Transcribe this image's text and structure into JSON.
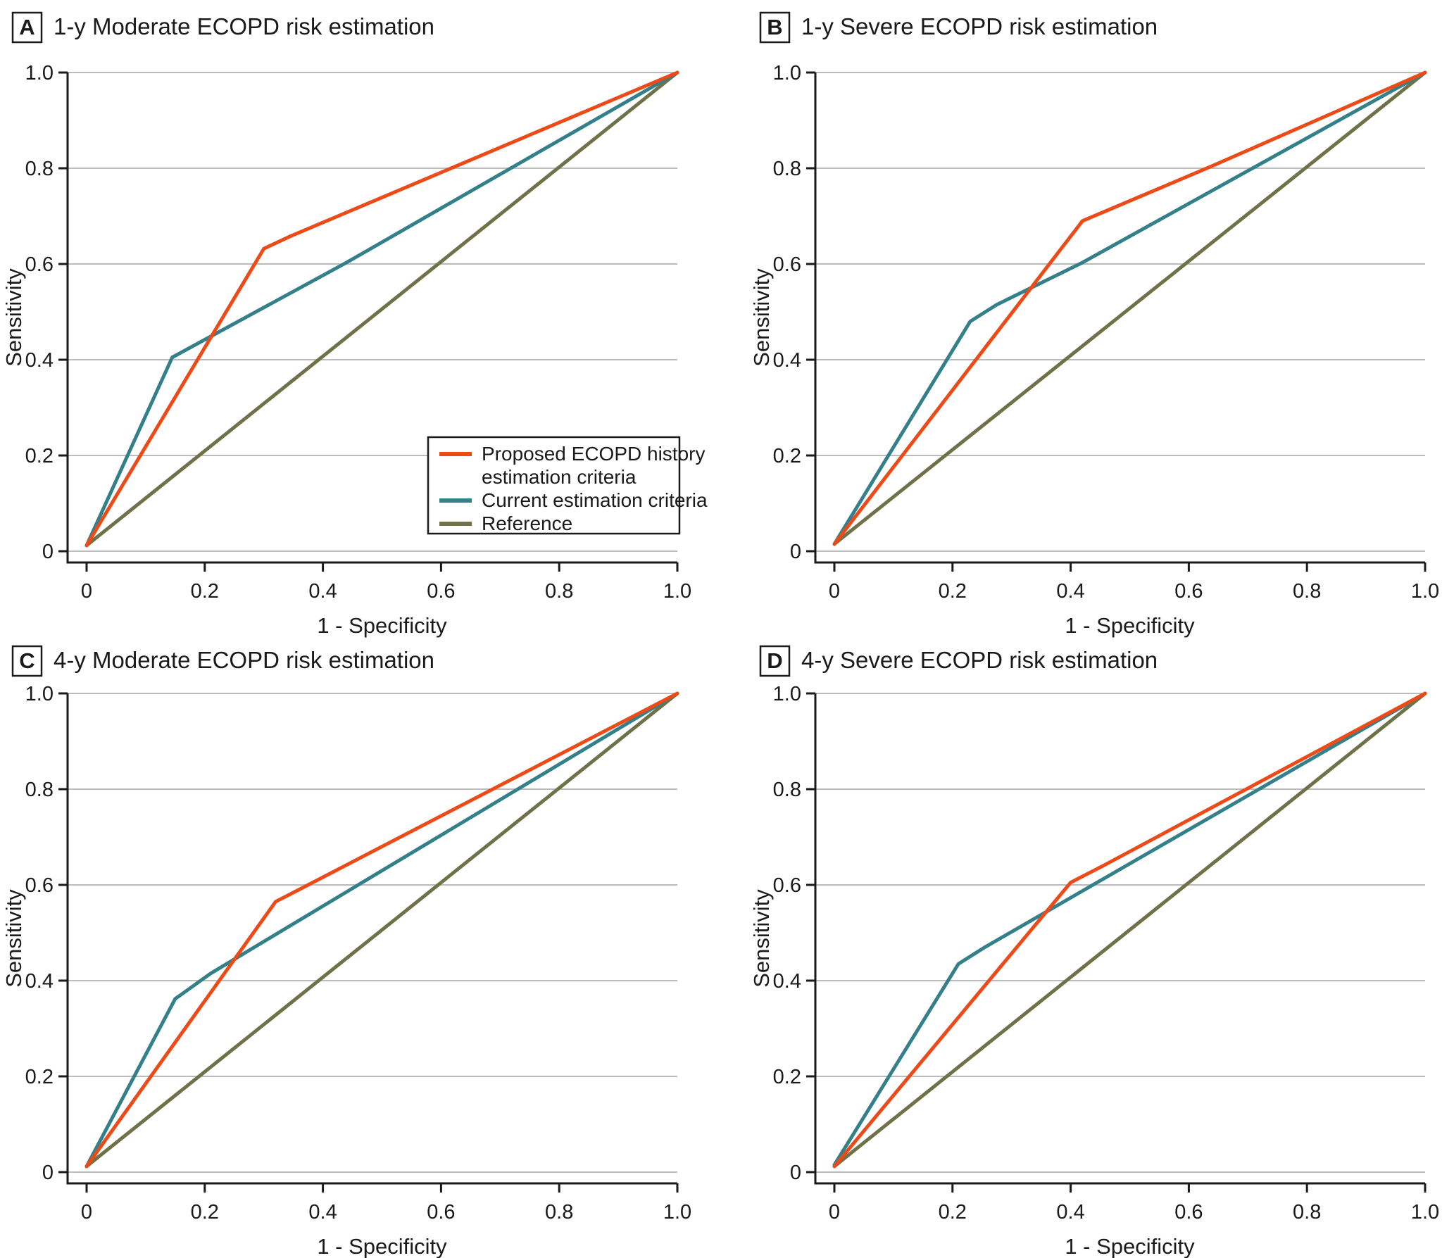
{
  "figure": {
    "background": "#ffffff",
    "colors": {
      "proposed": "#ee4a18",
      "current": "#33808a",
      "reference": "#6f7249",
      "grid": "#bbbbbb",
      "axis": "#1a1a1a",
      "text": "#1a1a1a",
      "legend_border": "#1a1a1a"
    },
    "legend": {
      "located_in_panel": "A",
      "entries": [
        {
          "series": "proposed",
          "label_lines": [
            "Proposed ECOPD history",
            "estimation criteria"
          ]
        },
        {
          "series": "current",
          "label_lines": [
            "Current estimation criteria"
          ]
        },
        {
          "series": "reference",
          "label_lines": [
            "Reference"
          ]
        }
      ]
    }
  },
  "chart_data": [
    {
      "type": "line",
      "panel_label": "A",
      "title": "1-y Moderate ECOPD risk estimation",
      "xlabel": "1 - Specificity",
      "ylabel": "Sensitivity",
      "xlim": [
        0,
        1
      ],
      "ylim": [
        0,
        1
      ],
      "grid": true,
      "xtick_values": [
        0,
        0.2,
        0.4,
        0.6,
        0.8,
        1.0
      ],
      "xtick_labels": [
        "0",
        "0.2",
        "0.4",
        "0.6",
        "0.8",
        "1.0"
      ],
      "ytick_values": [
        0,
        0.2,
        0.4,
        0.6,
        0.8,
        1.0
      ],
      "ytick_labels": [
        "0",
        "0.2",
        "0.4",
        "0.6",
        "0.8",
        "1.0"
      ],
      "show_legend": true,
      "series": [
        {
          "name": "Reference",
          "key": "reference",
          "points": [
            [
              0,
              0.012
            ],
            [
              1,
              1
            ]
          ]
        },
        {
          "name": "Current estimation criteria",
          "key": "current",
          "points": [
            [
              0,
              0.012
            ],
            [
              0.145,
              0.405
            ],
            [
              0.44,
              0.603
            ],
            [
              1,
              1
            ]
          ]
        },
        {
          "name": "Proposed ECOPD history estimation criteria",
          "key": "proposed",
          "points": [
            [
              0,
              0.012
            ],
            [
              0.3,
              0.632
            ],
            [
              0.345,
              0.658
            ],
            [
              1,
              1
            ]
          ]
        }
      ]
    },
    {
      "type": "line",
      "panel_label": "B",
      "title": "1-y Severe ECOPD risk estimation",
      "xlabel": "1 - Specificity",
      "ylabel": "Sensitivity",
      "xlim": [
        0,
        1
      ],
      "ylim": [
        0,
        1
      ],
      "grid": true,
      "xtick_values": [
        0,
        0.2,
        0.4,
        0.6,
        0.8,
        1.0
      ],
      "xtick_labels": [
        "0",
        "0.2",
        "0.4",
        "0.6",
        "0.8",
        "1.0"
      ],
      "ytick_values": [
        0,
        0.2,
        0.4,
        0.6,
        0.8,
        1.0
      ],
      "ytick_labels": [
        "0",
        "0.2",
        "0.4",
        "0.6",
        "0.8",
        "1.0"
      ],
      "show_legend": false,
      "series": [
        {
          "name": "Reference",
          "key": "reference",
          "points": [
            [
              0,
              0.015
            ],
            [
              1,
              1
            ]
          ]
        },
        {
          "name": "Current estimation criteria",
          "key": "current",
          "points": [
            [
              0,
              0.015
            ],
            [
              0.23,
              0.48
            ],
            [
              0.275,
              0.515
            ],
            [
              0.42,
              0.603
            ],
            [
              1,
              1
            ]
          ]
        },
        {
          "name": "Proposed ECOPD history estimation criteria",
          "key": "proposed",
          "points": [
            [
              0,
              0.015
            ],
            [
              0.42,
              0.69
            ],
            [
              0.64,
              0.805
            ],
            [
              1,
              1
            ]
          ]
        }
      ]
    },
    {
      "type": "line",
      "panel_label": "C",
      "title": "4-y Moderate ECOPD risk estimation",
      "xlabel": "1 - Specificity",
      "ylabel": "Sensitivity",
      "xlim": [
        0,
        1
      ],
      "ylim": [
        0,
        1
      ],
      "grid": true,
      "xtick_values": [
        0,
        0.2,
        0.4,
        0.6,
        0.8,
        1.0
      ],
      "xtick_labels": [
        "0",
        "0.2",
        "0.4",
        "0.6",
        "0.8",
        "1.0"
      ],
      "ytick_values": [
        0,
        0.2,
        0.4,
        0.6,
        0.8,
        1.0
      ],
      "ytick_labels": [
        "0",
        "0.2",
        "0.4",
        "0.6",
        "0.8",
        "1.0"
      ],
      "show_legend": false,
      "series": [
        {
          "name": "Reference",
          "key": "reference",
          "points": [
            [
              0,
              0.012
            ],
            [
              1,
              1
            ]
          ]
        },
        {
          "name": "Current estimation criteria",
          "key": "current",
          "points": [
            [
              0,
              0.012
            ],
            [
              0.15,
              0.362
            ],
            [
              0.21,
              0.415
            ],
            [
              1,
              1
            ]
          ]
        },
        {
          "name": "Proposed ECOPD history estimation criteria",
          "key": "proposed",
          "points": [
            [
              0,
              0.012
            ],
            [
              0.32,
              0.565
            ],
            [
              0.375,
              0.6
            ],
            [
              1,
              1
            ]
          ]
        }
      ]
    },
    {
      "type": "line",
      "panel_label": "D",
      "title": "4-y Severe ECOPD risk estimation",
      "xlabel": "1 - Specificity",
      "ylabel": "Sensitivity",
      "xlim": [
        0,
        1
      ],
      "ylim": [
        0,
        1
      ],
      "grid": true,
      "xtick_values": [
        0,
        0.2,
        0.4,
        0.6,
        0.8,
        1.0
      ],
      "xtick_labels": [
        "0",
        "0.2",
        "0.4",
        "0.6",
        "0.8",
        "1.0"
      ],
      "ytick_values": [
        0,
        0.2,
        0.4,
        0.6,
        0.8,
        1.0
      ],
      "ytick_labels": [
        "0",
        "0.2",
        "0.4",
        "0.6",
        "0.8",
        "1.0"
      ],
      "show_legend": false,
      "series": [
        {
          "name": "Reference",
          "key": "reference",
          "points": [
            [
              0,
              0.012
            ],
            [
              1,
              1
            ]
          ]
        },
        {
          "name": "Current estimation criteria",
          "key": "current",
          "points": [
            [
              0,
              0.015
            ],
            [
              0.21,
              0.435
            ],
            [
              0.255,
              0.47
            ],
            [
              1,
              1
            ]
          ]
        },
        {
          "name": "Proposed ECOPD history estimation criteria",
          "key": "proposed",
          "points": [
            [
              0,
              0.012
            ],
            [
              0.4,
              0.605
            ],
            [
              0.455,
              0.64
            ],
            [
              1,
              1
            ]
          ]
        }
      ]
    }
  ]
}
